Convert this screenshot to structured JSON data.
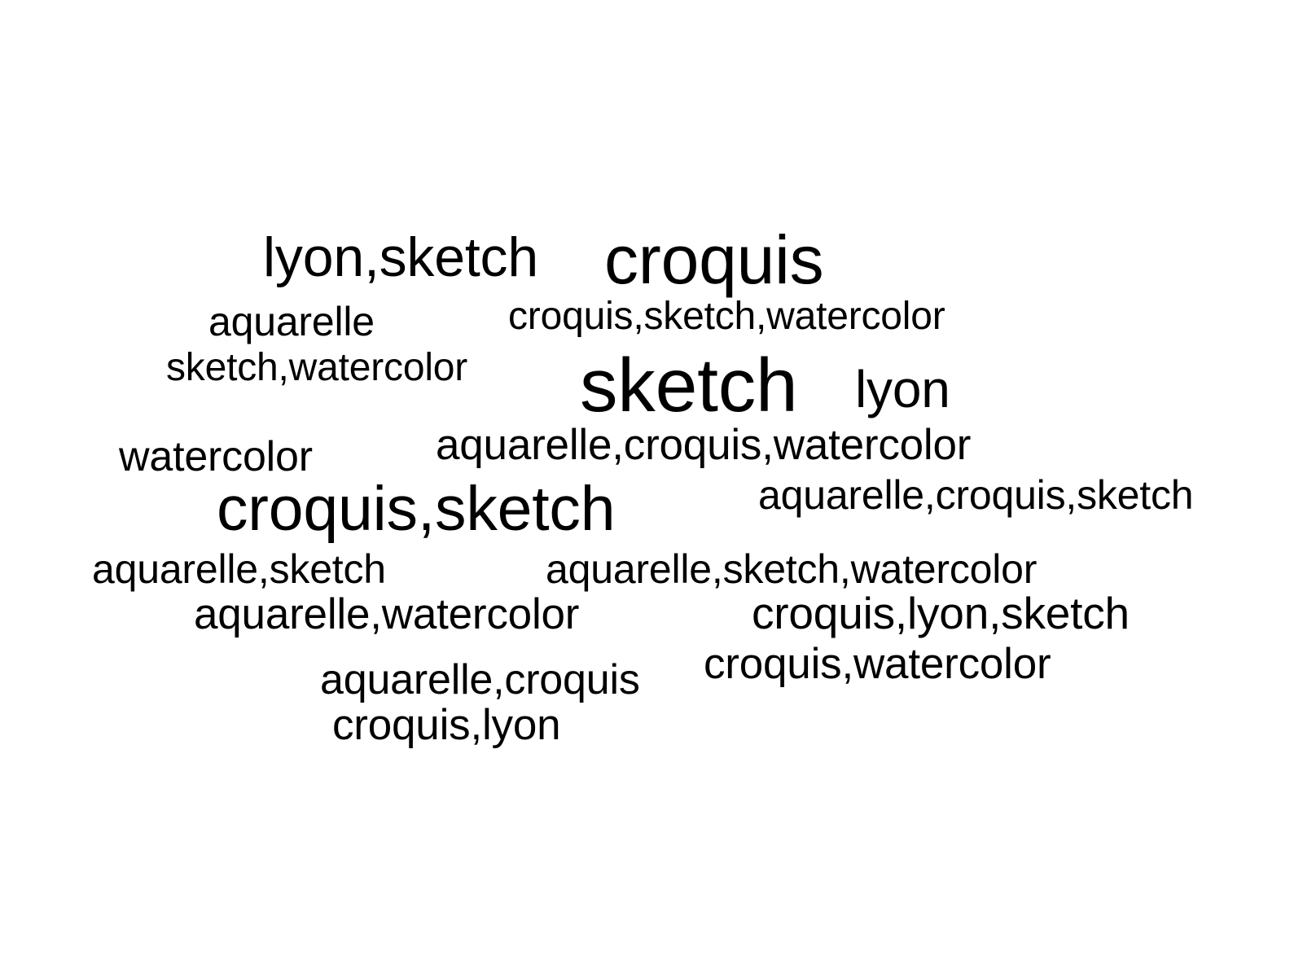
{
  "words": [
    {
      "text": "lyon,sketch"
    },
    {
      "text": "croquis"
    },
    {
      "text": "aquarelle"
    },
    {
      "text": "croquis,sketch,watercolor"
    },
    {
      "text": "sketch,watercolor"
    },
    {
      "text": "sketch"
    },
    {
      "text": "lyon"
    },
    {
      "text": "watercolor"
    },
    {
      "text": "aquarelle,croquis,watercolor"
    },
    {
      "text": "aquarelle,croquis,sketch"
    },
    {
      "text": "croquis,sketch"
    },
    {
      "text": "aquarelle,sketch"
    },
    {
      "text": "aquarelle,sketch,watercolor"
    },
    {
      "text": "aquarelle,watercolor"
    },
    {
      "text": "croquis,lyon,sketch"
    },
    {
      "text": "croquis,watercolor"
    },
    {
      "text": "aquarelle,croquis"
    },
    {
      "text": "croquis,lyon"
    }
  ],
  "colors": {
    "background": "#ffffff",
    "text": "#000000"
  }
}
